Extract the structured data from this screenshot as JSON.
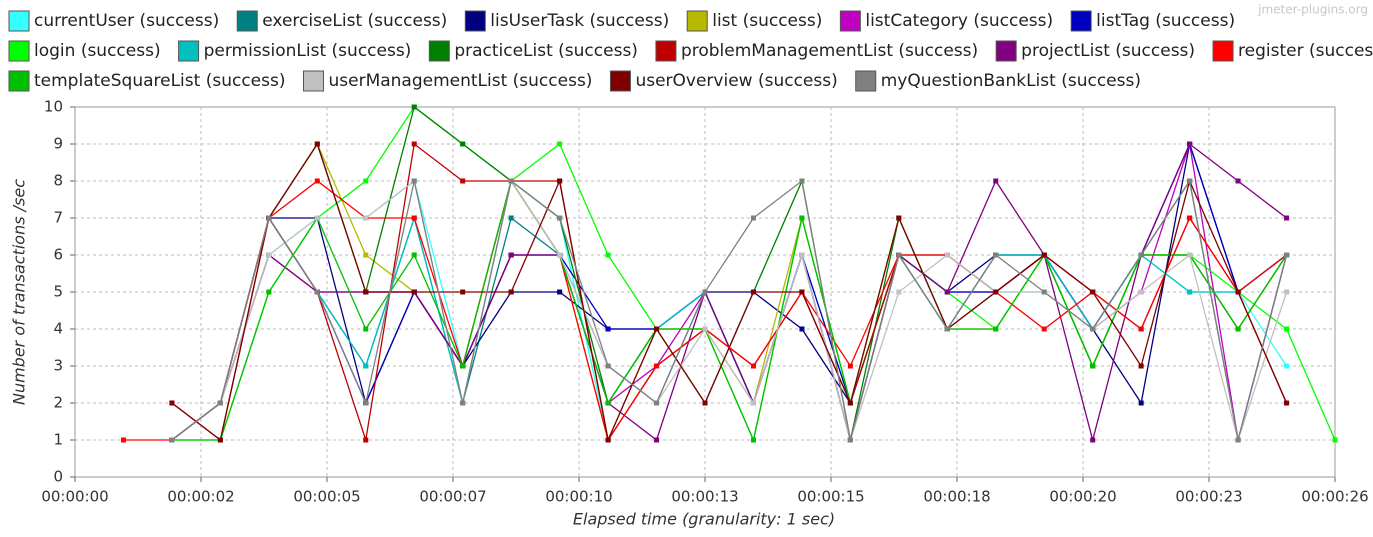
{
  "chart_data": {
    "type": "line",
    "watermark": "jmeter-plugins.org",
    "x_label": "Elapsed time (granularity: 1 sec)",
    "y_label": "Number of transactions /sec",
    "x": [
      1,
      2,
      3,
      4,
      5,
      6,
      7,
      8,
      9,
      10,
      11,
      12,
      13,
      14,
      15,
      16,
      17,
      18,
      19,
      20,
      21,
      22,
      23,
      24,
      25,
      26
    ],
    "xlim": [
      0,
      26
    ],
    "xticks": [
      {
        "value": 0,
        "label": "00:00:00"
      },
      {
        "value": 2.6,
        "label": "00:00:02"
      },
      {
        "value": 5.2,
        "label": "00:00:05"
      },
      {
        "value": 7.8,
        "label": "00:00:07"
      },
      {
        "value": 10.4,
        "label": "00:00:10"
      },
      {
        "value": 13,
        "label": "00:00:13"
      },
      {
        "value": 15.6,
        "label": "00:00:15"
      },
      {
        "value": 18.2,
        "label": "00:00:18"
      },
      {
        "value": 20.8,
        "label": "00:00:20"
      },
      {
        "value": 23.4,
        "label": "00:00:23"
      },
      {
        "value": 26,
        "label": "00:00:26"
      }
    ],
    "ylim": [
      0,
      10
    ],
    "yticks": [
      0,
      1,
      2,
      3,
      4,
      5,
      6,
      7,
      8,
      9,
      10
    ],
    "grid": true,
    "series": [
      {
        "name": "currentUser (success)",
        "color": "#33ffff",
        "values": [
          null,
          1,
          2,
          6,
          7,
          7,
          8,
          3,
          8,
          7,
          1,
          3,
          4,
          2,
          6,
          2,
          6,
          6,
          5,
          5,
          4,
          6,
          5,
          5,
          3,
          null
        ]
      },
      {
        "name": "exerciseList (success)",
        "color": "#008080",
        "values": [
          null,
          1,
          2,
          7,
          5,
          3,
          7,
          2,
          7,
          6,
          3,
          2,
          5,
          2,
          6,
          1,
          6,
          4,
          6,
          6,
          4,
          6,
          8,
          1,
          6,
          null
        ]
      },
      {
        "name": "lisUserTask (success)",
        "color": "#000080",
        "values": [
          null,
          1,
          2,
          7,
          7,
          2,
          5,
          3,
          5,
          5,
          4,
          4,
          5,
          5,
          4,
          2,
          6,
          5,
          6,
          6,
          4,
          2,
          9,
          5,
          6,
          null
        ]
      },
      {
        "name": "list (success)",
        "color": "#b8b800",
        "values": [
          null,
          1,
          2,
          7,
          9,
          6,
          5,
          3,
          8,
          6,
          1,
          4,
          4,
          2,
          7,
          2,
          6,
          4,
          4,
          6,
          3,
          6,
          6,
          4,
          6,
          null
        ]
      },
      {
        "name": "listCategory (success)",
        "color": "#c000c0",
        "values": [
          null,
          1,
          2,
          6,
          5,
          5,
          5,
          3,
          6,
          6,
          2,
          3,
          5,
          2,
          6,
          1,
          6,
          5,
          5,
          6,
          4,
          5,
          9,
          1,
          6,
          null
        ]
      },
      {
        "name": "listTag (success)",
        "color": "#0000c0",
        "values": [
          null,
          1,
          2,
          7,
          5,
          2,
          5,
          3,
          6,
          6,
          4,
          4,
          5,
          2,
          6,
          2,
          6,
          5,
          5,
          6,
          4,
          6,
          9,
          5,
          6,
          null
        ]
      },
      {
        "name": "login (success)",
        "color": "#00ff00",
        "values": [
          null,
          1,
          1,
          5,
          7,
          8,
          10,
          9,
          8,
          9,
          6,
          4,
          4,
          1,
          7,
          2,
          6,
          5,
          4,
          6,
          3,
          6,
          6,
          5,
          4,
          1
        ]
      },
      {
        "name": "permissionList (success)",
        "color": "#00c0c0",
        "values": [
          null,
          1,
          2,
          7,
          5,
          3,
          7,
          2,
          8,
          6,
          2,
          4,
          5,
          2,
          6,
          1,
          6,
          4,
          6,
          6,
          4,
          6,
          5,
          5,
          6,
          null
        ]
      },
      {
        "name": "practiceList (success)",
        "color": "#008000",
        "values": [
          null,
          1,
          2,
          7,
          9,
          5,
          10,
          9,
          8,
          7,
          2,
          4,
          2,
          5,
          8,
          1,
          7,
          4,
          5,
          6,
          3,
          6,
          6,
          4,
          6,
          null
        ]
      },
      {
        "name": "problemManagementList (success)",
        "color": "#c00000",
        "values": [
          null,
          2,
          1,
          7,
          5,
          1,
          9,
          8,
          8,
          8,
          1,
          3,
          4,
          3,
          5,
          2,
          6,
          6,
          5,
          6,
          5,
          4,
          7,
          5,
          2,
          null
        ]
      },
      {
        "name": "projectList (success)",
        "color": "#800080",
        "values": [
          null,
          1,
          2,
          6,
          5,
          5,
          5,
          3,
          6,
          6,
          2,
          1,
          5,
          2,
          6,
          1,
          6,
          5,
          8,
          6,
          1,
          6,
          9,
          8,
          7,
          null
        ]
      },
      {
        "name": "register (success)",
        "color": "#ff0000",
        "values": [
          1,
          1,
          2,
          7,
          8,
          7,
          7,
          3,
          8,
          6,
          1,
          3,
          4,
          3,
          5,
          3,
          6,
          6,
          5,
          4,
          5,
          4,
          7,
          5,
          6,
          null
        ]
      },
      {
        "name": "templateSquareList (success)",
        "color": "#00c000",
        "values": [
          null,
          1,
          1,
          5,
          7,
          4,
          6,
          3,
          8,
          6,
          2,
          4,
          4,
          1,
          7,
          2,
          7,
          4,
          4,
          6,
          3,
          6,
          6,
          4,
          6,
          null
        ]
      },
      {
        "name": "userManagementList (success)",
        "color": "#c0c0c0",
        "values": [
          null,
          1,
          2,
          6,
          7,
          7,
          8,
          2,
          8,
          6,
          3,
          2,
          4,
          2,
          6,
          1,
          5,
          6,
          5,
          5,
          4,
          5,
          6,
          1,
          5,
          null
        ]
      },
      {
        "name": "userOverview (success)",
        "color": "#800000",
        "values": [
          null,
          2,
          1,
          7,
          9,
          5,
          5,
          5,
          5,
          8,
          1,
          4,
          2,
          5,
          5,
          2,
          7,
          4,
          5,
          6,
          5,
          3,
          8,
          5,
          2,
          null
        ]
      },
      {
        "name": "myQuestionBankList (success)",
        "color": "#808080",
        "values": [
          null,
          1,
          2,
          7,
          5,
          2,
          8,
          2,
          8,
          7,
          3,
          2,
          5,
          7,
          8,
          1,
          6,
          4,
          6,
          5,
          4,
          6,
          8,
          1,
          6,
          null
        ]
      }
    ]
  }
}
